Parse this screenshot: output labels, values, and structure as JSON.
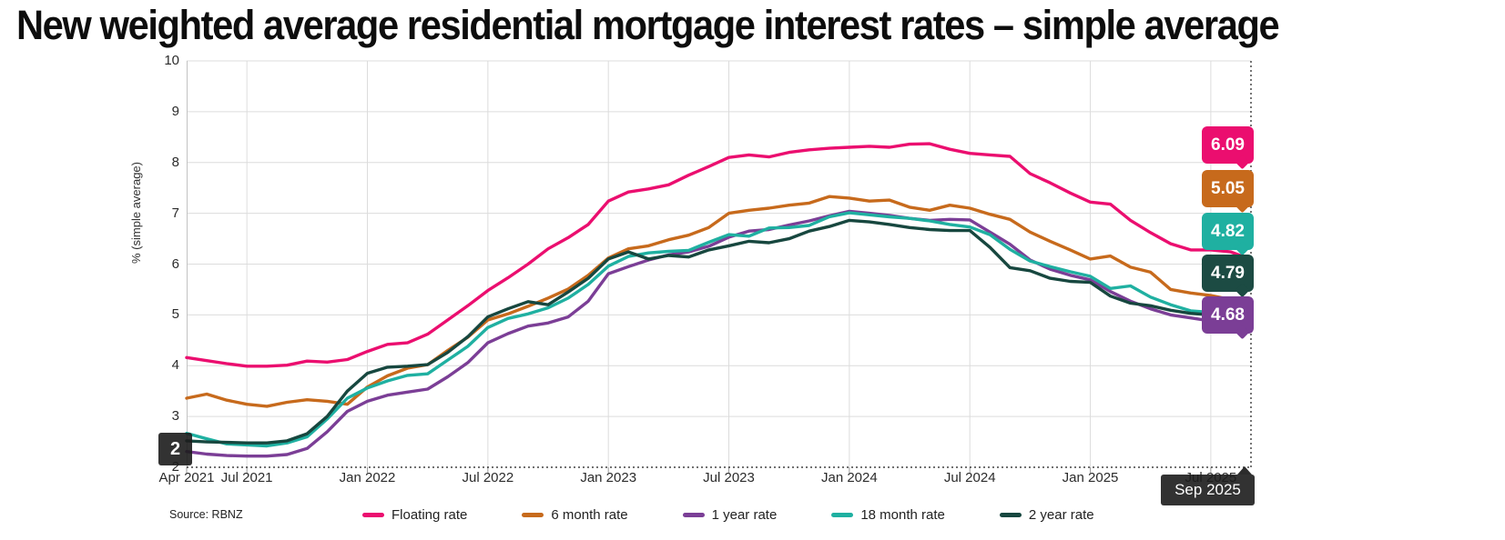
{
  "title": "New weighted average residential mortgage interest rates – simple average",
  "source": "Source: RBNZ",
  "colors": {
    "floating": "#eb0e6f",
    "six_month": "#c76a1c",
    "one_year": "#7b3e96",
    "eighteen_month": "#1fb0a1",
    "two_year": "#17473f",
    "grid": "#dcdcdc",
    "axis_line": "#c2c2c2",
    "crosshair": "#1c1c1c",
    "tick_text": "#2b2b2b"
  },
  "crosshair": {
    "x_label": "Sep 2025",
    "y_label": "2"
  },
  "end_labels": {
    "items": [
      {
        "value": "6.09",
        "color": "#eb0e6f"
      },
      {
        "value": "5.05",
        "color": "#c76a1c"
      },
      {
        "value": "4.82",
        "color": "#1fb0a1"
      },
      {
        "value": "4.79",
        "color": "#1c4b43"
      },
      {
        "value": "4.68",
        "color": "#7b3e96"
      }
    ]
  },
  "legend": {
    "items": [
      {
        "label": "Floating rate",
        "color": "#eb0e6f"
      },
      {
        "label": "6 month rate",
        "color": "#c76a1c"
      },
      {
        "label": "1 year rate",
        "color": "#7b3e96"
      },
      {
        "label": "18 month rate",
        "color": "#1fb0a1"
      },
      {
        "label": "2 year rate",
        "color": "#17473f"
      }
    ]
  },
  "chart_data": {
    "type": "line",
    "title": "New weighted average residential mortgage interest rates – simple average",
    "ylabel": "% (simple average)",
    "ylim": [
      2,
      10
    ],
    "y_ticks": [
      10,
      9,
      8,
      7,
      6,
      5,
      4,
      3,
      2
    ],
    "grid": true,
    "legend_position": "bottom",
    "x_tick_labels": [
      {
        "label": "Apr 2021",
        "month_index": 0
      },
      {
        "label": "Jul 2021",
        "month_index": 3
      },
      {
        "label": "Jan 2022",
        "month_index": 9
      },
      {
        "label": "Jul 2022",
        "month_index": 15
      },
      {
        "label": "Jan 2023",
        "month_index": 21
      },
      {
        "label": "Jul 2023",
        "month_index": 27
      },
      {
        "label": "Jan 2024",
        "month_index": 33
      },
      {
        "label": "Jul 2024",
        "month_index": 39
      },
      {
        "label": "Jan 2025",
        "month_index": 45
      },
      {
        "label": "Jul 2025",
        "month_index": 51
      }
    ],
    "x": [
      "Apr 2021",
      "May 2021",
      "Jun 2021",
      "Jul 2021",
      "Aug 2021",
      "Sep 2021",
      "Oct 2021",
      "Nov 2021",
      "Dec 2021",
      "Jan 2022",
      "Feb 2022",
      "Mar 2022",
      "Apr 2022",
      "May 2022",
      "Jun 2022",
      "Jul 2022",
      "Aug 2022",
      "Sep 2022",
      "Oct 2022",
      "Nov 2022",
      "Dec 2022",
      "Jan 2023",
      "Feb 2023",
      "Mar 2023",
      "Apr 2023",
      "May 2023",
      "Jun 2023",
      "Jul 2023",
      "Aug 2023",
      "Sep 2023",
      "Oct 2023",
      "Nov 2023",
      "Dec 2023",
      "Jan 2024",
      "Feb 2024",
      "Mar 2024",
      "Apr 2024",
      "May 2024",
      "Jun 2024",
      "Jul 2024",
      "Aug 2024",
      "Sep 2024",
      "Oct 2024",
      "Nov 2024",
      "Dec 2024",
      "Jan 2025",
      "Feb 2025",
      "Mar 2025",
      "Apr 2025",
      "May 2025",
      "Jun 2025",
      "Jul 2025",
      "Aug 2025",
      "Sep 2025"
    ],
    "series": [
      {
        "name": "Floating rate",
        "color": "#eb0e6f",
        "values": [
          4.16,
          4.1,
          4.04,
          3.99,
          3.99,
          4.01,
          4.09,
          4.07,
          4.12,
          4.28,
          4.42,
          4.45,
          4.62,
          4.9,
          5.18,
          5.48,
          5.73,
          6.0,
          6.3,
          6.52,
          6.78,
          7.24,
          7.42,
          7.48,
          7.56,
          7.75,
          7.92,
          8.1,
          8.15,
          8.11,
          8.2,
          8.25,
          8.28,
          8.3,
          8.32,
          8.3,
          8.36,
          8.37,
          8.26,
          8.18,
          8.15,
          8.12,
          7.78,
          7.6,
          7.4,
          7.22,
          7.18,
          6.86,
          6.62,
          6.4,
          6.28,
          6.28,
          6.24,
          6.09
        ]
      },
      {
        "name": "6 month rate",
        "color": "#c76a1c",
        "values": [
          3.36,
          3.44,
          3.32,
          3.24,
          3.2,
          3.28,
          3.33,
          3.3,
          3.24,
          3.58,
          3.8,
          3.95,
          4.02,
          4.3,
          4.56,
          4.9,
          5.02,
          5.17,
          5.33,
          5.51,
          5.78,
          6.12,
          6.3,
          6.36,
          6.48,
          6.57,
          6.72,
          7.0,
          7.06,
          7.1,
          7.16,
          7.2,
          7.33,
          7.3,
          7.24,
          7.26,
          7.12,
          7.06,
          7.16,
          7.1,
          6.98,
          6.88,
          6.63,
          6.45,
          6.28,
          6.1,
          6.16,
          5.94,
          5.84,
          5.5,
          5.43,
          5.38,
          5.3,
          5.05
        ]
      },
      {
        "name": "1 year rate",
        "color": "#7b3e96",
        "values": [
          2.31,
          2.26,
          2.23,
          2.22,
          2.22,
          2.25,
          2.37,
          2.7,
          3.1,
          3.3,
          3.42,
          3.48,
          3.54,
          3.78,
          4.06,
          4.45,
          4.63,
          4.78,
          4.84,
          4.96,
          5.27,
          5.81,
          5.95,
          6.08,
          6.18,
          6.24,
          6.35,
          6.53,
          6.65,
          6.68,
          6.77,
          6.85,
          6.95,
          7.04,
          7.0,
          6.96,
          6.9,
          6.86,
          6.88,
          6.87,
          6.63,
          6.39,
          6.08,
          5.9,
          5.78,
          5.69,
          5.46,
          5.27,
          5.12,
          5.0,
          4.94,
          4.88,
          4.85,
          4.68
        ]
      },
      {
        "name": "18 month rate",
        "color": "#1fb0a1",
        "values": [
          2.67,
          2.56,
          2.46,
          2.44,
          2.42,
          2.48,
          2.6,
          2.95,
          3.36,
          3.56,
          3.7,
          3.81,
          3.84,
          4.11,
          4.38,
          4.75,
          4.93,
          5.02,
          5.14,
          5.33,
          5.6,
          5.96,
          6.15,
          6.22,
          6.25,
          6.27,
          6.43,
          6.58,
          6.55,
          6.71,
          6.72,
          6.76,
          6.93,
          7.01,
          6.97,
          6.93,
          6.9,
          6.85,
          6.78,
          6.73,
          6.58,
          6.29,
          6.06,
          5.95,
          5.85,
          5.76,
          5.52,
          5.57,
          5.35,
          5.2,
          5.08,
          5.05,
          4.95,
          4.82
        ]
      },
      {
        "name": "2 year rate",
        "color": "#17473f",
        "values": [
          2.52,
          2.5,
          2.49,
          2.48,
          2.48,
          2.52,
          2.66,
          3.0,
          3.5,
          3.85,
          3.97,
          3.99,
          4.02,
          4.26,
          4.57,
          4.96,
          5.12,
          5.26,
          5.2,
          5.45,
          5.72,
          6.1,
          6.24,
          6.1,
          6.17,
          6.14,
          6.28,
          6.36,
          6.45,
          6.42,
          6.5,
          6.65,
          6.74,
          6.86,
          6.83,
          6.78,
          6.72,
          6.68,
          6.66,
          6.66,
          6.33,
          5.93,
          5.87,
          5.72,
          5.66,
          5.64,
          5.37,
          5.23,
          5.18,
          5.09,
          5.03,
          5.0,
          4.97,
          4.79
        ]
      }
    ]
  }
}
